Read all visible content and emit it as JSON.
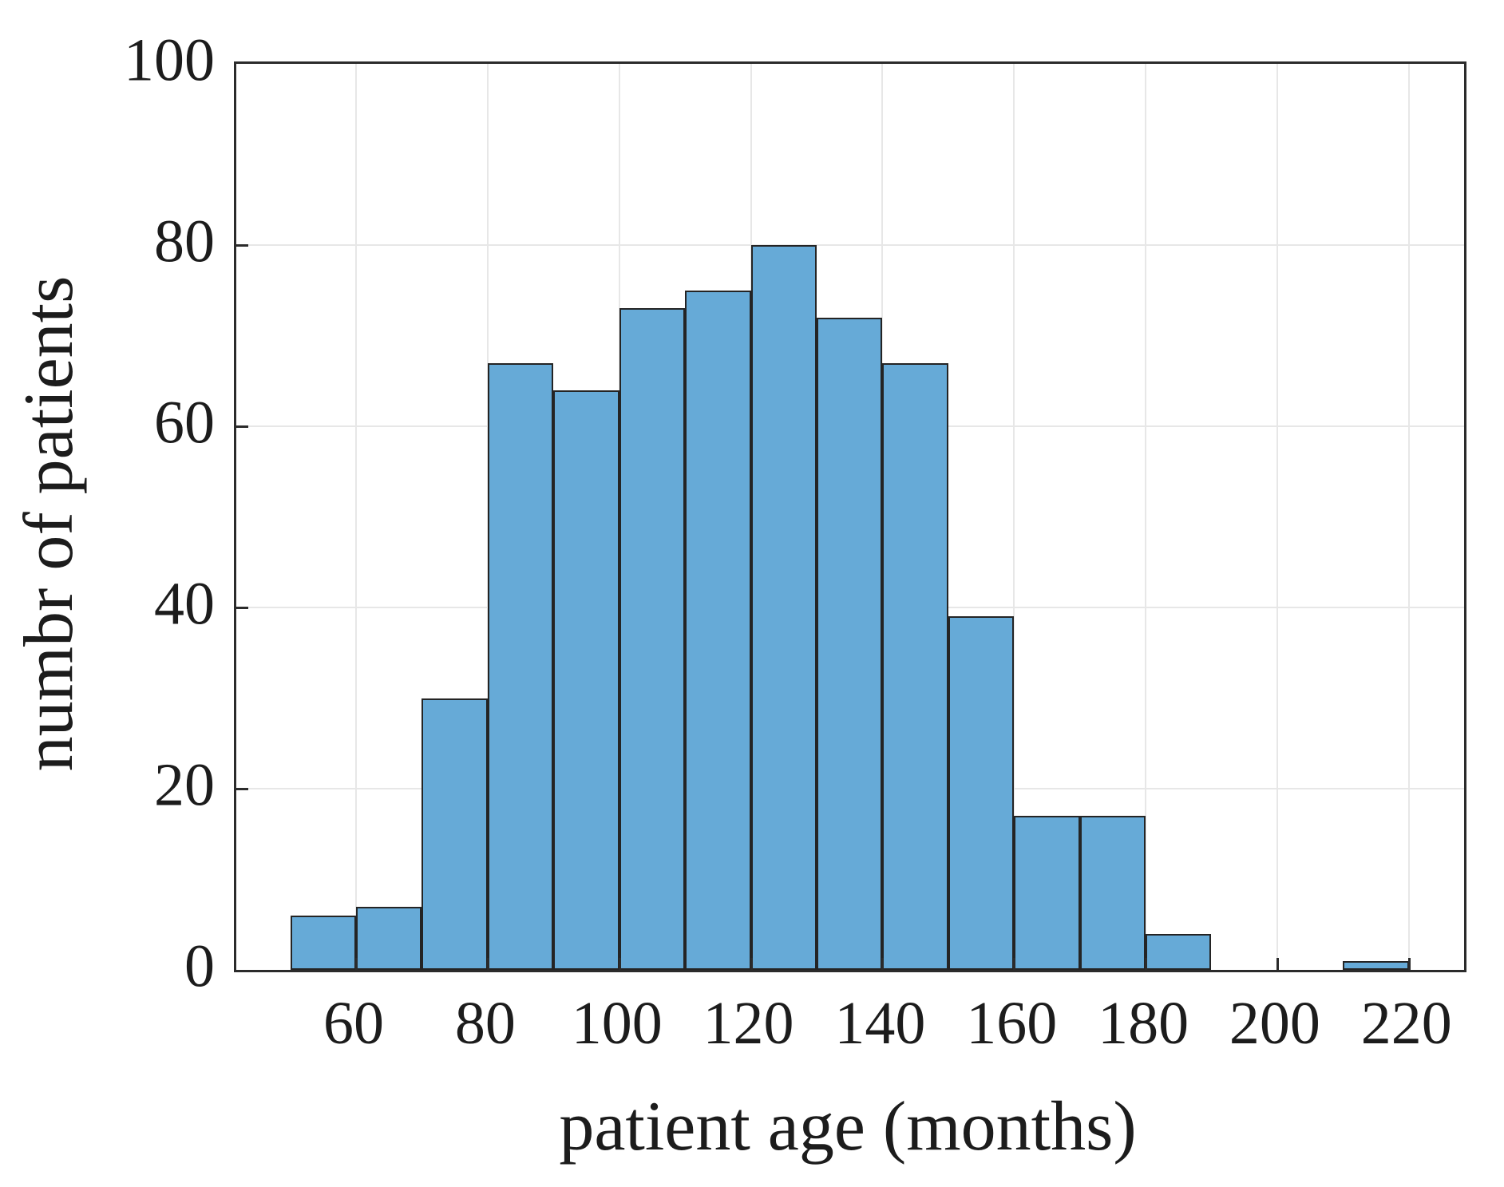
{
  "figure": {
    "background": "#ffffff",
    "text_color": "#1c1c1c"
  },
  "chart_data": {
    "type": "bar",
    "subtype": "histogram",
    "title": "",
    "xlabel": "patient age (months)",
    "ylabel": "numbr of patients",
    "bin_width": 10,
    "bin_edges": [
      50,
      60,
      70,
      80,
      90,
      100,
      110,
      120,
      130,
      140,
      150,
      160,
      170,
      180,
      190,
      200,
      210,
      220
    ],
    "counts": [
      6,
      7,
      30,
      67,
      64,
      73,
      75,
      80,
      72,
      67,
      39,
      17,
      17,
      4,
      0,
      0,
      1
    ],
    "xlim": [
      41.8,
      228.4
    ],
    "ylim": [
      0,
      100
    ],
    "x_ticks": [
      60,
      80,
      100,
      120,
      140,
      160,
      180,
      200,
      220
    ],
    "y_ticks": [
      0,
      20,
      40,
      60,
      80,
      100
    ],
    "grid": true,
    "legend": null,
    "colors": {
      "bar_fill": "#66aad7",
      "bar_edge": "#242424",
      "grid_color": "#e7e7e7",
      "axis_color": "#2b2b2b",
      "tick_color": "#2b2b2b",
      "text_color": "#1c1c1c"
    }
  }
}
